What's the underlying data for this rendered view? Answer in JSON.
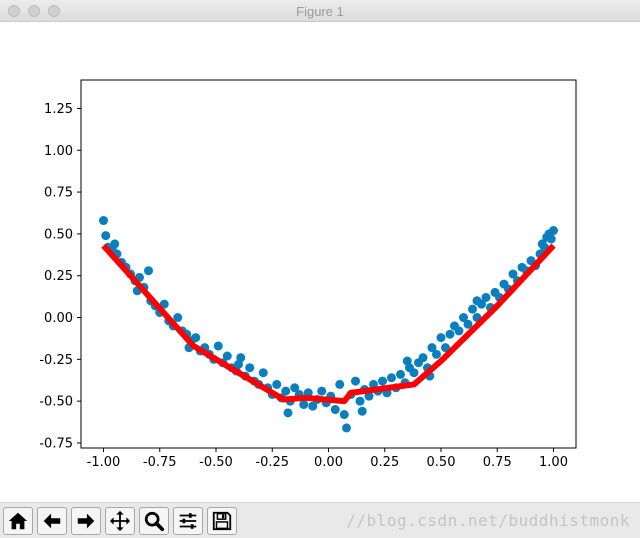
{
  "window": {
    "title": "Figure 1"
  },
  "chart_data": {
    "type": "scatter",
    "title": "",
    "xlabel": "",
    "ylabel": "",
    "xlim": [
      -1.1,
      1.1
    ],
    "ylim": [
      -0.78,
      1.42
    ],
    "x_ticks": [
      "-1.00",
      "-0.75",
      "-0.50",
      "-0.25",
      "0.00",
      "0.25",
      "0.50",
      "0.75",
      "1.00"
    ],
    "x_tick_values": [
      -1.0,
      -0.75,
      -0.5,
      -0.25,
      0.0,
      0.25,
      0.5,
      0.75,
      1.0
    ],
    "y_ticks": [
      "-0.75",
      "-0.50",
      "-0.25",
      "0.00",
      "0.25",
      "0.50",
      "0.75",
      "1.00",
      "1.25"
    ],
    "y_tick_values": [
      -0.75,
      -0.5,
      -0.25,
      0.0,
      0.25,
      0.5,
      0.75,
      1.0,
      1.25
    ],
    "grid": false,
    "legend": "none",
    "scatter_color": "#0a7fbf",
    "line_color": "#ff0000",
    "scatter": [
      [
        -1.0,
        0.58
      ],
      [
        -0.99,
        0.49
      ],
      [
        -0.98,
        0.42
      ],
      [
        -0.96,
        0.4
      ],
      [
        -0.95,
        0.44
      ],
      [
        -0.94,
        0.38
      ],
      [
        -0.92,
        0.33
      ],
      [
        -0.9,
        0.3
      ],
      [
        -0.88,
        0.26
      ],
      [
        -0.86,
        0.22
      ],
      [
        -0.84,
        0.24
      ],
      [
        -0.82,
        0.18
      ],
      [
        -0.8,
        0.28
      ],
      [
        -0.79,
        0.1
      ],
      [
        -0.77,
        0.07
      ],
      [
        -0.75,
        0.03
      ],
      [
        -0.73,
        0.08
      ],
      [
        -0.71,
        -0.02
      ],
      [
        -0.69,
        -0.05
      ],
      [
        -0.67,
        0.0
      ],
      [
        -0.65,
        -0.08
      ],
      [
        -0.63,
        -0.1
      ],
      [
        -0.61,
        -0.14
      ],
      [
        -0.59,
        -0.12
      ],
      [
        -0.57,
        -0.2
      ],
      [
        -0.55,
        -0.18
      ],
      [
        -0.53,
        -0.22
      ],
      [
        -0.51,
        -0.25
      ],
      [
        -0.49,
        -0.17
      ],
      [
        -0.47,
        -0.27
      ],
      [
        -0.45,
        -0.23
      ],
      [
        -0.43,
        -0.3
      ],
      [
        -0.41,
        -0.32
      ],
      [
        -0.39,
        -0.24
      ],
      [
        -0.37,
        -0.35
      ],
      [
        -0.35,
        -0.3
      ],
      [
        -0.33,
        -0.38
      ],
      [
        -0.31,
        -0.4
      ],
      [
        -0.29,
        -0.33
      ],
      [
        -0.27,
        -0.42
      ],
      [
        -0.25,
        -0.46
      ],
      [
        -0.23,
        -0.4
      ],
      [
        -0.21,
        -0.48
      ],
      [
        -0.19,
        -0.44
      ],
      [
        -0.17,
        -0.5
      ],
      [
        -0.15,
        -0.42
      ],
      [
        -0.13,
        -0.46
      ],
      [
        -0.11,
        -0.52
      ],
      [
        -0.09,
        -0.45
      ],
      [
        -0.07,
        -0.53
      ],
      [
        -0.05,
        -0.49
      ],
      [
        -0.03,
        -0.44
      ],
      [
        -0.01,
        -0.51
      ],
      [
        0.01,
        -0.47
      ],
      [
        0.03,
        -0.55
      ],
      [
        0.05,
        -0.4
      ],
      [
        0.07,
        -0.58
      ],
      [
        0.08,
        -0.66
      ],
      [
        0.1,
        -0.46
      ],
      [
        0.12,
        -0.38
      ],
      [
        0.14,
        -0.5
      ],
      [
        0.16,
        -0.43
      ],
      [
        0.18,
        -0.47
      ],
      [
        0.2,
        -0.4
      ],
      [
        0.22,
        -0.44
      ],
      [
        0.24,
        -0.38
      ],
      [
        0.26,
        -0.45
      ],
      [
        0.28,
        -0.36
      ],
      [
        0.3,
        -0.42
      ],
      [
        0.32,
        -0.34
      ],
      [
        0.34,
        -0.39
      ],
      [
        0.36,
        -0.3
      ],
      [
        0.38,
        -0.33
      ],
      [
        0.4,
        -0.27
      ],
      [
        0.42,
        -0.24
      ],
      [
        0.44,
        -0.3
      ],
      [
        0.46,
        -0.18
      ],
      [
        0.48,
        -0.22
      ],
      [
        0.5,
        -0.12
      ],
      [
        0.52,
        -0.18
      ],
      [
        0.54,
        -0.1
      ],
      [
        0.56,
        -0.05
      ],
      [
        0.58,
        -0.08
      ],
      [
        0.6,
        0.0
      ],
      [
        0.62,
        -0.04
      ],
      [
        0.64,
        0.05
      ],
      [
        0.66,
        0.0
      ],
      [
        0.68,
        0.08
      ],
      [
        0.7,
        0.12
      ],
      [
        0.72,
        0.06
      ],
      [
        0.74,
        0.15
      ],
      [
        0.76,
        0.12
      ],
      [
        0.78,
        0.2
      ],
      [
        0.8,
        0.17
      ],
      [
        0.82,
        0.26
      ],
      [
        0.84,
        0.22
      ],
      [
        0.86,
        0.3
      ],
      [
        0.88,
        0.28
      ],
      [
        0.9,
        0.34
      ],
      [
        0.92,
        0.31
      ],
      [
        0.94,
        0.38
      ],
      [
        0.95,
        0.44
      ],
      [
        0.96,
        0.42
      ],
      [
        0.97,
        0.48
      ],
      [
        0.98,
        0.5
      ],
      [
        0.99,
        0.47
      ],
      [
        1.0,
        0.52
      ],
      [
        -0.62,
        -0.18
      ],
      [
        -0.4,
        -0.28
      ],
      [
        -0.18,
        -0.57
      ],
      [
        0.15,
        -0.56
      ],
      [
        0.35,
        -0.26
      ],
      [
        0.45,
        -0.35
      ],
      [
        0.66,
        0.1
      ],
      [
        -0.85,
        0.16
      ]
    ],
    "line": [
      [
        -1.0,
        0.43
      ],
      [
        -0.6,
        -0.17
      ],
      [
        -0.2,
        -0.49
      ],
      [
        -0.1,
        -0.48
      ],
      [
        0.07,
        -0.5
      ],
      [
        0.1,
        -0.45
      ],
      [
        0.38,
        -0.4
      ],
      [
        0.5,
        -0.26
      ],
      [
        0.75,
        0.07
      ],
      [
        1.0,
        0.43
      ]
    ]
  },
  "toolbar": {
    "buttons": [
      {
        "name": "home-button",
        "icon": "home-icon"
      },
      {
        "name": "back-button",
        "icon": "arrow-left-icon"
      },
      {
        "name": "forward-button",
        "icon": "arrow-right-icon"
      },
      {
        "name": "pan-button",
        "icon": "move-icon"
      },
      {
        "name": "zoom-button",
        "icon": "magnifier-icon"
      },
      {
        "name": "configure-subplots-button",
        "icon": "sliders-icon"
      },
      {
        "name": "save-button",
        "icon": "floppy-disk-icon"
      }
    ],
    "watermark": "//blog.csdn.net/buddhistmonk"
  }
}
